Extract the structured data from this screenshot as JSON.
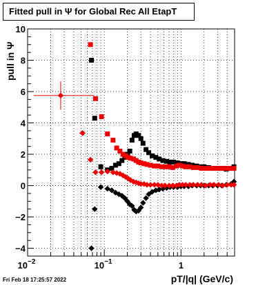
{
  "title": "Fitted pull in  Ψ  for Global Rec All EtapT",
  "footer": "Fri Feb 18 17:25:57 2022",
  "chart_data": {
    "type": "scatter",
    "title": "Fitted pull in  Ψ  for Global Rec All EtapT",
    "xlabel": "pT/|q| (GeV/c)",
    "ylabel": "pull in  Ψ",
    "xscale": "log",
    "xlim": [
      0.01,
      5.0
    ],
    "ylim": [
      -4.5,
      10
    ],
    "x_tick_labels": [
      {
        "value": 0.01,
        "label": "10",
        "exp": "−2"
      },
      {
        "value": 0.1,
        "label": "10",
        "exp": "−1"
      },
      {
        "value": 1,
        "label": "1",
        "exp": ""
      }
    ],
    "y_tick_labels": [
      {
        "value": -4,
        "label": "−4"
      },
      {
        "value": -2,
        "label": "−2"
      },
      {
        "value": 0,
        "label": "0"
      },
      {
        "value": 2,
        "label": "2"
      },
      {
        "value": 4,
        "label": "4"
      },
      {
        "value": 6,
        "label": "6"
      },
      {
        "value": 8,
        "label": "8"
      },
      {
        "value": 10,
        "label": "10"
      }
    ],
    "grid": true,
    "series": [
      {
        "color": "#000000",
        "marker": "square",
        "points": [
          [
            0.068,
            8.0
          ],
          [
            0.075,
            4.3
          ],
          [
            0.09,
            1.2
          ],
          [
            0.11,
            1.0
          ],
          [
            0.125,
            1.1
          ],
          [
            0.14,
            1.3
          ],
          [
            0.155,
            1.4
          ],
          [
            0.17,
            1.6
          ],
          [
            0.185,
            1.8
          ],
          [
            0.2,
            2.0
          ],
          [
            0.215,
            2.2
          ],
          [
            0.23,
            2.9
          ],
          [
            0.245,
            3.2
          ],
          [
            0.26,
            3.3
          ],
          [
            0.28,
            3.2
          ],
          [
            0.3,
            3.0
          ],
          [
            0.32,
            2.7
          ],
          [
            0.35,
            2.3
          ],
          [
            0.38,
            2.1
          ],
          [
            0.42,
            1.9
          ],
          [
            0.47,
            1.8
          ],
          [
            0.52,
            1.7
          ],
          [
            0.58,
            1.6
          ],
          [
            0.65,
            1.55
          ],
          [
            0.72,
            1.5
          ],
          [
            0.8,
            1.5
          ],
          [
            0.9,
            1.45
          ],
          [
            1.0,
            1.4
          ],
          [
            1.1,
            1.4
          ],
          [
            1.25,
            1.35
          ],
          [
            1.4,
            1.3
          ],
          [
            1.6,
            1.25
          ],
          [
            1.8,
            1.2
          ],
          [
            2.0,
            1.2
          ],
          [
            2.3,
            1.15
          ],
          [
            2.6,
            1.1
          ],
          [
            3.0,
            1.1
          ],
          [
            3.4,
            1.1
          ],
          [
            3.9,
            1.05
          ],
          [
            4.5,
            1.1
          ],
          [
            4.9,
            1.2
          ]
        ]
      },
      {
        "color": "#000000",
        "marker": "diamond",
        "points": [
          [
            0.068,
            -4.0
          ],
          [
            0.075,
            -1.5
          ],
          [
            0.09,
            -0.1
          ],
          [
            0.11,
            -0.2
          ],
          [
            0.125,
            -0.3
          ],
          [
            0.14,
            -0.45
          ],
          [
            0.155,
            -0.55
          ],
          [
            0.17,
            -0.65
          ],
          [
            0.185,
            -0.8
          ],
          [
            0.2,
            -1.0
          ],
          [
            0.215,
            -1.2
          ],
          [
            0.23,
            -1.3
          ],
          [
            0.245,
            -1.55
          ],
          [
            0.26,
            -1.65
          ],
          [
            0.28,
            -1.6
          ],
          [
            0.3,
            -1.4
          ],
          [
            0.32,
            -1.1
          ],
          [
            0.35,
            -0.8
          ],
          [
            0.38,
            -0.55
          ],
          [
            0.42,
            -0.4
          ],
          [
            0.47,
            -0.3
          ],
          [
            0.52,
            -0.25
          ],
          [
            0.58,
            -0.2
          ],
          [
            0.65,
            -0.15
          ],
          [
            0.72,
            -0.1
          ],
          [
            0.8,
            -0.1
          ],
          [
            0.9,
            -0.1
          ],
          [
            1.0,
            -0.05
          ],
          [
            1.1,
            -0.05
          ],
          [
            1.25,
            -0.05
          ],
          [
            1.4,
            0.0
          ],
          [
            1.6,
            0.0
          ],
          [
            1.8,
            0.0
          ],
          [
            2.0,
            0.0
          ],
          [
            2.3,
            0.0
          ],
          [
            2.6,
            0.0
          ],
          [
            3.0,
            0.0
          ],
          [
            3.4,
            0.0
          ],
          [
            3.9,
            0.05
          ],
          [
            4.5,
            0.1
          ],
          [
            4.9,
            0.25
          ]
        ]
      },
      {
        "color": "#ee0000",
        "marker": "square",
        "points": [
          [
            0.066,
            9.0
          ],
          [
            0.077,
            5.55
          ],
          [
            0.092,
            4.4
          ],
          [
            0.11,
            3.3
          ],
          [
            0.13,
            2.9
          ],
          [
            0.145,
            2.4
          ],
          [
            0.16,
            2.2
          ],
          [
            0.175,
            2.0
          ],
          [
            0.19,
            1.9
          ],
          [
            0.205,
            1.8
          ],
          [
            0.22,
            1.75
          ],
          [
            0.24,
            1.7
          ],
          [
            0.26,
            1.6
          ],
          [
            0.28,
            1.5
          ],
          [
            0.3,
            1.45
          ],
          [
            0.33,
            1.4
          ],
          [
            0.36,
            1.35
          ],
          [
            0.4,
            1.3
          ],
          [
            0.45,
            1.25
          ],
          [
            0.5,
            1.25
          ],
          [
            0.56,
            1.2
          ],
          [
            0.62,
            1.2
          ],
          [
            0.7,
            1.2
          ],
          [
            0.78,
            1.15
          ],
          [
            0.87,
            1.25
          ],
          [
            0.95,
            1.3
          ],
          [
            1.05,
            1.25
          ],
          [
            1.15,
            1.2
          ],
          [
            1.3,
            1.2
          ],
          [
            1.45,
            1.15
          ],
          [
            1.65,
            1.15
          ],
          [
            1.85,
            1.1
          ],
          [
            2.1,
            1.1
          ],
          [
            2.4,
            1.1
          ],
          [
            2.7,
            1.1
          ],
          [
            3.1,
            1.1
          ],
          [
            3.5,
            1.1
          ],
          [
            4.0,
            1.1
          ],
          [
            4.5,
            1.1
          ],
          [
            4.9,
            1.1
          ]
        ]
      },
      {
        "color": "#ee0000",
        "marker": "diamond",
        "points": [
          [
            0.066,
            1.65
          ],
          [
            0.077,
            0.85
          ],
          [
            0.092,
            0.85
          ],
          [
            0.11,
            0.9
          ],
          [
            0.13,
            0.85
          ],
          [
            0.145,
            0.8
          ],
          [
            0.16,
            0.75
          ],
          [
            0.175,
            0.65
          ],
          [
            0.19,
            0.55
          ],
          [
            0.205,
            0.45
          ],
          [
            0.22,
            0.35
          ],
          [
            0.24,
            0.25
          ],
          [
            0.26,
            0.2
          ],
          [
            0.28,
            0.15
          ],
          [
            0.3,
            0.1
          ],
          [
            0.33,
            0.1
          ],
          [
            0.36,
            0.05
          ],
          [
            0.4,
            0.05
          ],
          [
            0.45,
            0.05
          ],
          [
            0.5,
            0.05
          ],
          [
            0.56,
            0.0
          ],
          [
            0.62,
            0.0
          ],
          [
            0.7,
            0.0
          ],
          [
            0.78,
            0.0
          ],
          [
            0.87,
            0.0
          ],
          [
            0.95,
            0.05
          ],
          [
            1.05,
            0.05
          ],
          [
            1.15,
            0.05
          ],
          [
            1.3,
            0.05
          ],
          [
            1.45,
            0.05
          ],
          [
            1.65,
            0.05
          ],
          [
            1.85,
            0.05
          ],
          [
            2.1,
            0.0
          ],
          [
            2.4,
            0.05
          ],
          [
            2.7,
            0.05
          ],
          [
            3.1,
            0.05
          ],
          [
            3.5,
            0.0
          ],
          [
            4.0,
            0.05
          ],
          [
            4.5,
            0.05
          ],
          [
            4.9,
            0.05
          ]
        ]
      },
      {
        "color": "#ee0000",
        "marker": "diamond-errorbar",
        "points": [
          [
            0.027,
            5.75,
            0.015,
            0.047,
            0.9
          ],
          [
            0.052,
            3.35,
            0.005,
            0.005,
            0.0
          ]
        ]
      }
    ]
  }
}
